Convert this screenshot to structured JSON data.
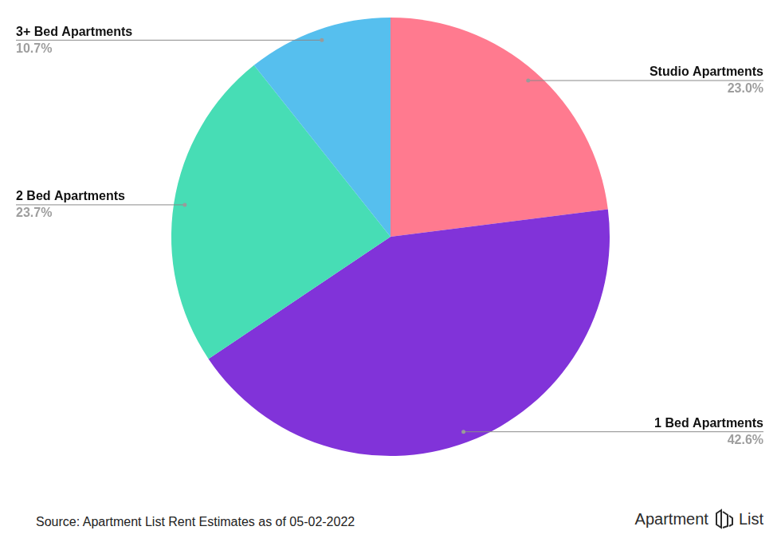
{
  "chart_data": {
    "type": "pie",
    "categories": [
      "Studio Apartments",
      "1 Bed Apartments",
      "2 Bed Apartments",
      "3+ Bed Apartments"
    ],
    "values": [
      23.0,
      42.6,
      23.7,
      10.7
    ],
    "value_labels": [
      "23.0%",
      "42.6%",
      "23.7%",
      "10.7%"
    ],
    "colors": [
      "#ff7a8f",
      "#8133d9",
      "#47ddb5",
      "#56bfee"
    ],
    "data_labels": true,
    "source": "Source: Apartment List Rent Estimates as of 05-02-2022",
    "logo": "Apartment List"
  }
}
